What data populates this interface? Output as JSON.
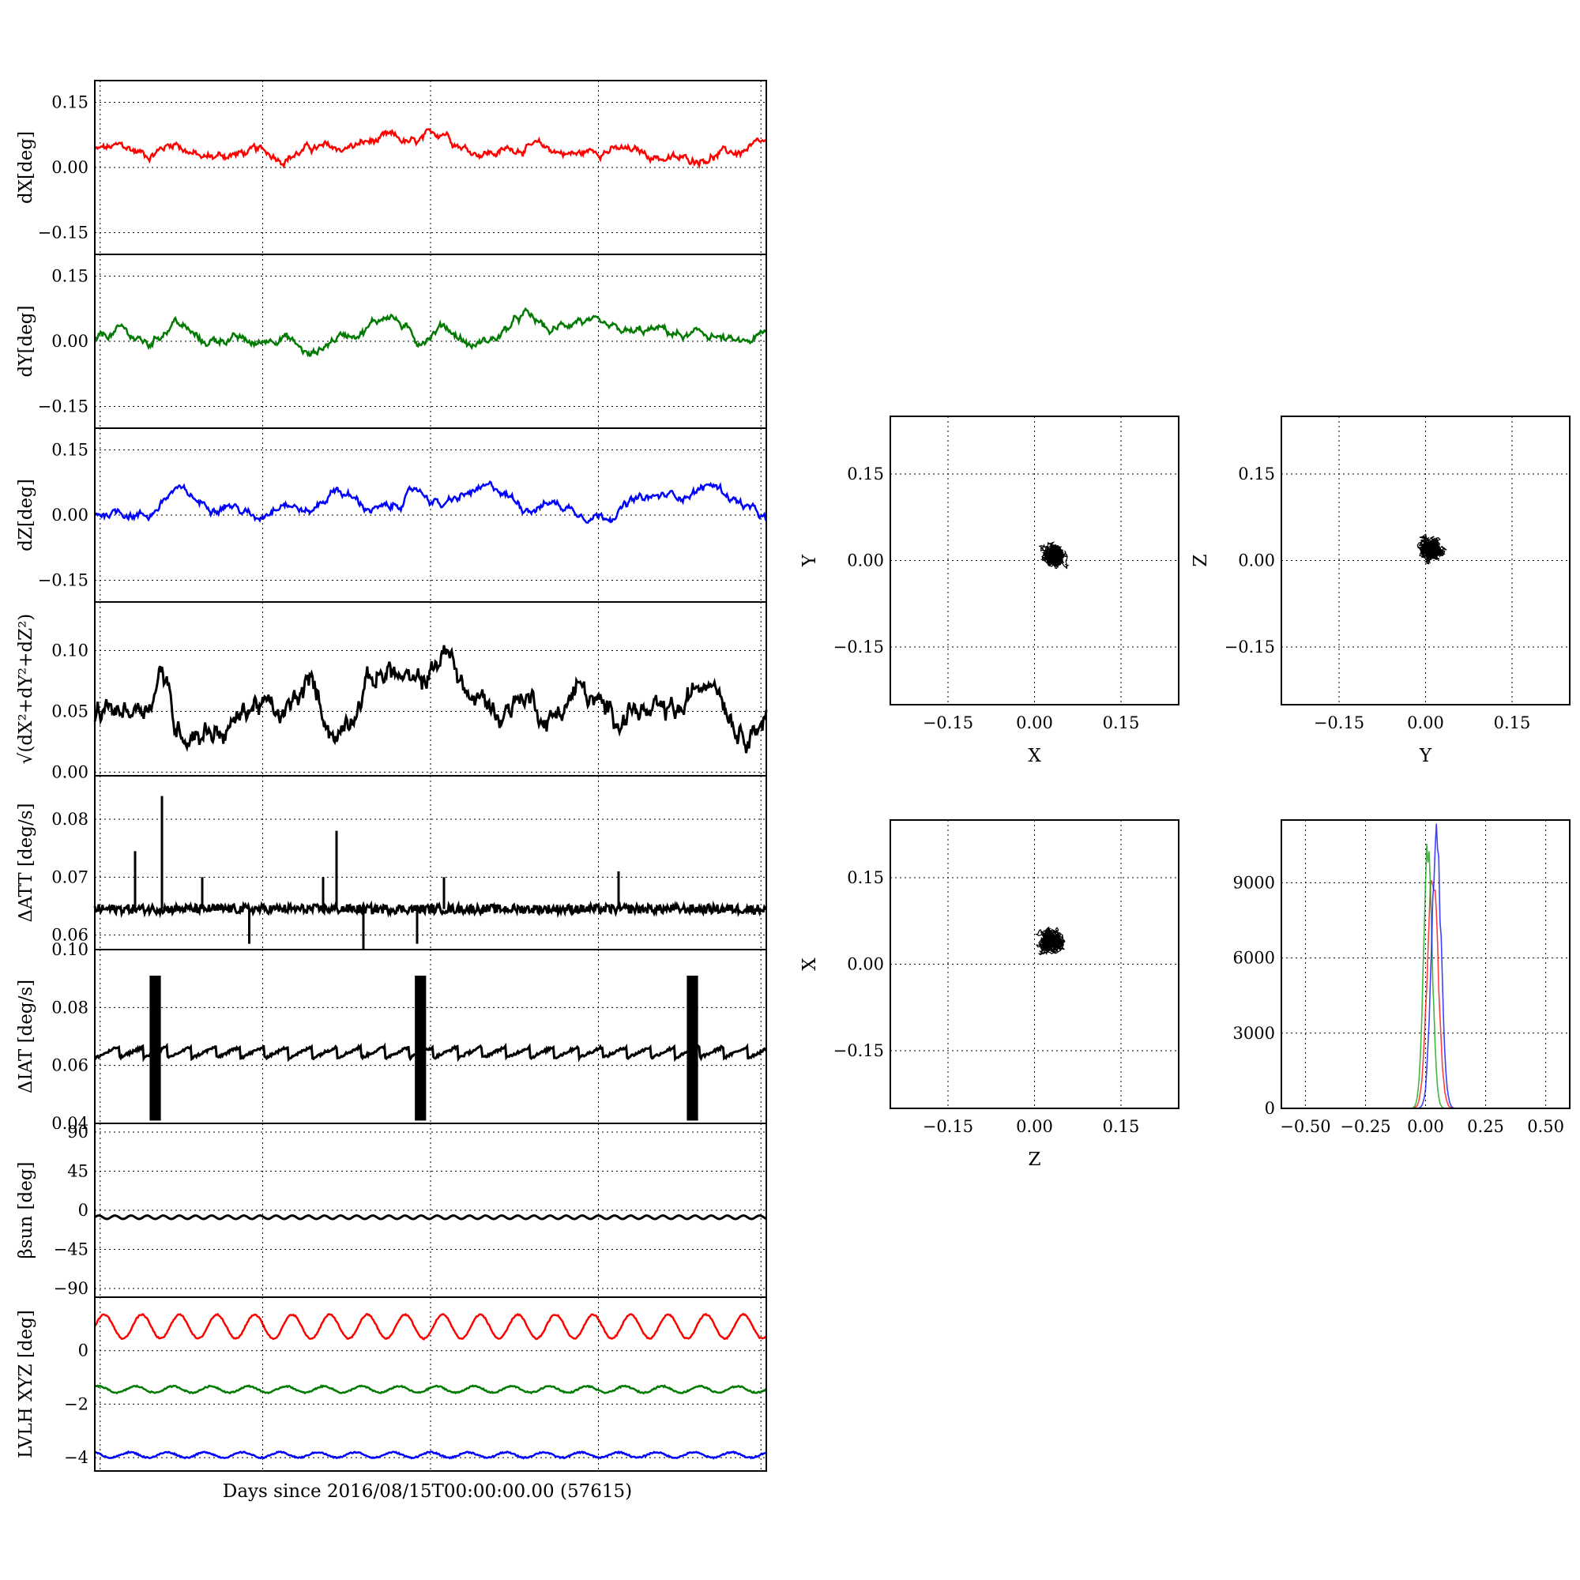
{
  "figure": {
    "xlabel": "Days since 2016/08/15T00:00:00.00 (57615)"
  },
  "chart_data": [
    {
      "type": "line",
      "id": "dx",
      "ylabel": "dX[deg]",
      "ylim": [
        -0.2,
        0.2
      ],
      "yticks": [
        0.15,
        0.0,
        -0.15
      ],
      "ytick_labels": [
        "0.15",
        "0.00",
        "−0.15"
      ],
      "grid": true,
      "series": [
        {
          "color": "#ff0000",
          "mean": 0.035,
          "amplitude": 0.025,
          "x": [
            0,
            4,
            8,
            12,
            16,
            20,
            24,
            28,
            32,
            36,
            40,
            44,
            48,
            52,
            56,
            60,
            64,
            68,
            72,
            76,
            80,
            84,
            88,
            92,
            96,
            100
          ],
          "y": [
            0.04,
            0.045,
            0.03,
            0.06,
            0.02,
            0.03,
            0.035,
            0.025,
            0.045,
            0.04,
            0.055,
            0.065,
            0.05,
            0.085,
            0.04,
            0.035,
            0.05,
            0.04,
            0.03,
            0.045,
            0.035,
            0.025,
            0.015,
            0.03,
            0.035,
            0.05
          ]
        }
      ]
    },
    {
      "type": "line",
      "id": "dy",
      "ylabel": "dY[deg]",
      "ylim": [
        -0.2,
        0.2
      ],
      "yticks": [
        0.15,
        0.0,
        -0.15
      ],
      "ytick_labels": [
        "0.15",
        "0.00",
        "−0.15"
      ],
      "grid": true,
      "series": [
        {
          "color": "#007a00",
          "mean": 0.01,
          "amplitude": 0.025,
          "x": [
            0,
            4,
            8,
            12,
            16,
            20,
            24,
            28,
            32,
            36,
            40,
            44,
            48,
            52,
            56,
            60,
            64,
            68,
            72,
            76,
            80,
            84,
            88,
            92,
            96,
            100
          ],
          "y": [
            0.0,
            0.025,
            -0.01,
            0.05,
            -0.005,
            0.01,
            -0.01,
            0.02,
            -0.035,
            0.01,
            0.03,
            0.065,
            0.0,
            0.04,
            -0.01,
            0.01,
            0.06,
            0.02,
            0.055,
            0.02,
            0.015,
            0.025,
            0.01,
            0.015,
            -0.01,
            0.015
          ]
        }
      ]
    },
    {
      "type": "line",
      "id": "dz",
      "ylabel": "dZ[deg]",
      "ylim": [
        -0.2,
        0.2
      ],
      "yticks": [
        0.15,
        0.0,
        -0.15
      ],
      "ytick_labels": [
        "0.15",
        "0.00",
        "−0.15"
      ],
      "grid": true,
      "series": [
        {
          "color": "#0000ff",
          "mean": 0.02,
          "amplitude": 0.025,
          "x": [
            0,
            4,
            8,
            12,
            16,
            20,
            24,
            28,
            32,
            36,
            40,
            44,
            48,
            52,
            56,
            60,
            64,
            68,
            72,
            76,
            80,
            84,
            88,
            92,
            96,
            100
          ],
          "y": [
            0.005,
            0.01,
            0.0,
            0.06,
            0.025,
            0.03,
            -0.01,
            0.04,
            0.005,
            0.065,
            0.02,
            0.01,
            0.06,
            0.02,
            0.05,
            0.06,
            0.02,
            0.03,
            0.01,
            0.0,
            0.03,
            0.04,
            0.05,
            0.07,
            0.03,
            -0.015
          ]
        }
      ]
    },
    {
      "type": "line",
      "id": "drss",
      "ylabel": "√(dX²+dY²+dZ²)",
      "ylim": [
        -0.003,
        0.14
      ],
      "yticks": [
        0.1,
        0.05,
        0.0
      ],
      "ytick_labels": [
        "0.10",
        "0.05",
        "0.00"
      ],
      "grid": true,
      "series": [
        {
          "color": "#000000",
          "mean": 0.05,
          "amplitude": 0.012,
          "x": [
            0,
            4,
            8,
            10,
            12,
            16,
            20,
            24,
            28,
            32,
            36,
            40,
            44,
            48,
            52,
            56,
            60,
            64,
            68,
            72,
            76,
            80,
            84,
            88,
            92,
            96,
            100
          ],
          "y": [
            0.045,
            0.05,
            0.06,
            0.09,
            0.035,
            0.04,
            0.035,
            0.06,
            0.04,
            0.07,
            0.03,
            0.075,
            0.085,
            0.065,
            0.1,
            0.06,
            0.05,
            0.065,
            0.045,
            0.07,
            0.045,
            0.055,
            0.04,
            0.05,
            0.09,
            0.04,
            0.05
          ]
        }
      ]
    },
    {
      "type": "line",
      "id": "datt",
      "ylabel": "ΔATT [deg/s]",
      "ylim": [
        0.0575,
        0.0875
      ],
      "yticks": [
        0.08,
        0.07,
        0.06
      ],
      "ytick_labels": [
        "0.08",
        "0.07",
        "0.06"
      ],
      "grid": true,
      "series": [
        {
          "color": "#000000",
          "mean": 0.0645,
          "amplitude": 0.0008
        }
      ],
      "spikes": [
        {
          "x": 6,
          "y": 0.0745
        },
        {
          "x": 10,
          "y": 0.084
        },
        {
          "x": 16,
          "y": 0.07
        },
        {
          "x": 23,
          "y": 0.061
        },
        {
          "x": 23,
          "y": 0.0585
        },
        {
          "x": 34,
          "y": 0.07
        },
        {
          "x": 36,
          "y": 0.078
        },
        {
          "x": 40,
          "y": 0.0575
        },
        {
          "x": 48,
          "y": 0.0585
        },
        {
          "x": 52,
          "y": 0.07
        },
        {
          "x": 78,
          "y": 0.071
        }
      ]
    },
    {
      "type": "line",
      "id": "diat",
      "ylabel": "ΔIAT [deg/s]",
      "ylim": [
        0.04,
        0.1
      ],
      "yticks": [
        0.1,
        0.08,
        0.06,
        0.04
      ],
      "ytick_labels": [
        "0.10",
        "0.08",
        "0.06",
        "0.04"
      ],
      "grid": true,
      "series": [
        {
          "color": "#000000",
          "mean": 0.0645,
          "amplitude": 0.0015
        }
      ],
      "bursts": [
        {
          "x": 9,
          "ymin": 0.041,
          "ymax": 0.091
        },
        {
          "x": 48.5,
          "ymin": 0.041,
          "ymax": 0.091
        },
        {
          "x": 89,
          "ymin": 0.041,
          "ymax": 0.091
        }
      ]
    },
    {
      "type": "line",
      "id": "beta",
      "ylabel": "βsun [deg]",
      "ylim": [
        -100,
        100
      ],
      "yticks": [
        90,
        45,
        0,
        -45,
        -90
      ],
      "ytick_labels": [
        "90",
        "45",
        "0",
        "−45",
        "−90"
      ],
      "grid": true,
      "series": [
        {
          "color": "#000000",
          "mean": -8,
          "amplitude": 2
        }
      ]
    },
    {
      "type": "line",
      "id": "lvlh",
      "ylabel": "LVLH XYZ [deg]",
      "ylim": [
        -4.5,
        2.0
      ],
      "yticks": [
        0,
        -2,
        -4
      ],
      "ytick_labels": [
        "0",
        "−2",
        "−4"
      ],
      "grid": true,
      "series": [
        {
          "color": "#ff0000",
          "mean": 0.9,
          "amplitude": 0.45
        },
        {
          "color": "#007a00",
          "mean": -1.45,
          "amplitude": 0.12
        },
        {
          "color": "#0000ff",
          "mean": -3.9,
          "amplitude": 0.1
        }
      ]
    },
    {
      "type": "scatter",
      "id": "xy",
      "xlabel": "X",
      "ylabel": "Y",
      "xlim": [
        -0.25,
        0.25
      ],
      "ylim": [
        -0.25,
        0.25
      ],
      "ticks": [
        -0.15,
        0.0,
        0.15
      ],
      "tick_labels": [
        "−0.15",
        "0.00",
        "0.15"
      ],
      "grid": true,
      "color": "#000000",
      "center": [
        0.035,
        0.01
      ],
      "spread": [
        0.03,
        0.03
      ]
    },
    {
      "type": "scatter",
      "id": "yz",
      "xlabel": "Y",
      "ylabel": "Z",
      "xlim": [
        -0.25,
        0.25
      ],
      "ylim": [
        -0.25,
        0.25
      ],
      "ticks": [
        -0.15,
        0.0,
        0.15
      ],
      "tick_labels": [
        "−0.15",
        "0.00",
        "0.15"
      ],
      "grid": true,
      "color": "#000000",
      "center": [
        0.01,
        0.02
      ],
      "spread": [
        0.035,
        0.03
      ]
    },
    {
      "type": "scatter",
      "id": "zx",
      "xlabel": "Z",
      "ylabel": "X",
      "xlim": [
        -0.25,
        0.25
      ],
      "ylim": [
        -0.25,
        0.25
      ],
      "ticks": [
        -0.15,
        0.0,
        0.15
      ],
      "tick_labels": [
        "−0.15",
        "0.00",
        "0.15"
      ],
      "grid": true,
      "color": "#000000",
      "center": [
        0.03,
        0.04
      ],
      "spread": [
        0.03,
        0.02
      ]
    },
    {
      "type": "histogram",
      "id": "hist",
      "xlim": [
        -0.6,
        0.6
      ],
      "ylim": [
        0,
        11500
      ],
      "xticks": [
        -0.5,
        -0.25,
        0.0,
        0.25,
        0.5
      ],
      "xtick_labels": [
        "−0.50",
        "−0.25",
        "0.00",
        "0.25",
        "0.50"
      ],
      "yticks": [
        0,
        3000,
        6000,
        9000
      ],
      "ytick_labels": [
        "0",
        "3000",
        "6000",
        "9000"
      ],
      "grid": true,
      "series": [
        {
          "color": "#ff0000",
          "center": 0.03,
          "width": 0.022,
          "peak": 10100
        },
        {
          "color": "#00a000",
          "center": 0.01,
          "width": 0.018,
          "peak": 11000
        },
        {
          "color": "#0000ff",
          "center": 0.045,
          "width": 0.02,
          "peak": 11500
        }
      ]
    }
  ]
}
